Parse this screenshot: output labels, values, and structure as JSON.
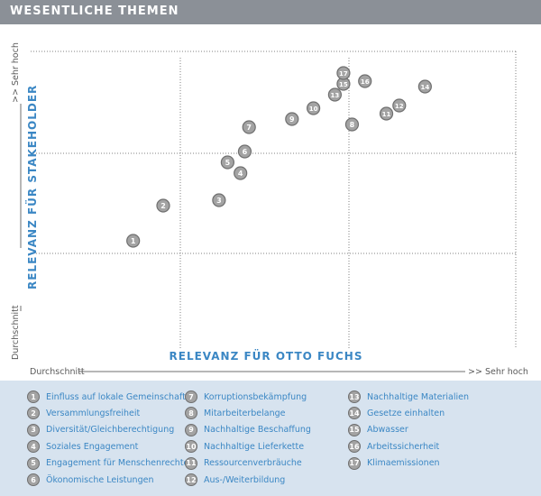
{
  "header": {
    "title": "WESENTLICHE THEMEN"
  },
  "axes": {
    "x_title": "RELEVANZ FÜR OTTO FUCHS",
    "y_title": "RELEVANZ FÜR STAKEHOLDER",
    "x_low": "Durchschnitt",
    "x_high": ">> Sehr hoch",
    "y_low": "Durchschnitt",
    "y_high": ">> Sehr hoch"
  },
  "chart_data": {
    "type": "scatter",
    "xlabel": "RELEVANZ FÜR OTTO FUCHS",
    "ylabel": "RELEVANZ FÜR STAKEHOLDER",
    "xlim": [
      0,
      100
    ],
    "ylim": [
      0,
      100
    ],
    "points": [
      {
        "id": "1",
        "x": 18,
        "y": 30
      },
      {
        "id": "2",
        "x": 25,
        "y": 43
      },
      {
        "id": "3",
        "x": 38,
        "y": 45
      },
      {
        "id": "4",
        "x": 43,
        "y": 55
      },
      {
        "id": "5",
        "x": 40,
        "y": 59
      },
      {
        "id": "6",
        "x": 44,
        "y": 63
      },
      {
        "id": "7",
        "x": 45,
        "y": 72
      },
      {
        "id": "8",
        "x": 69,
        "y": 73
      },
      {
        "id": "9",
        "x": 55,
        "y": 75
      },
      {
        "id": "10",
        "x": 60,
        "y": 79
      },
      {
        "id": "11",
        "x": 77,
        "y": 77
      },
      {
        "id": "12",
        "x": 80,
        "y": 80
      },
      {
        "id": "13",
        "x": 65,
        "y": 84
      },
      {
        "id": "14",
        "x": 86,
        "y": 87
      },
      {
        "id": "15",
        "x": 67,
        "y": 88
      },
      {
        "id": "16",
        "x": 72,
        "y": 89
      },
      {
        "id": "17",
        "x": 67,
        "y": 92
      }
    ]
  },
  "legend": [
    {
      "num": "1",
      "label": "Einfluss auf lokale Gemeinschaften"
    },
    {
      "num": "2",
      "label": "Versammlungsfreiheit"
    },
    {
      "num": "3",
      "label": "Diversität/Gleichberechtigung"
    },
    {
      "num": "4",
      "label": "Soziales Engagement"
    },
    {
      "num": "5",
      "label": "Engagement für Menschenrechte"
    },
    {
      "num": "6",
      "label": "Ökonomische Leistungen"
    },
    {
      "num": "7",
      "label": "Korruptionsbekämpfung"
    },
    {
      "num": "8",
      "label": "Mitarbeiterbelange"
    },
    {
      "num": "9",
      "label": "Nachhaltige Beschaffung"
    },
    {
      "num": "10",
      "label": "Nachhaltige Lieferkette"
    },
    {
      "num": "11",
      "label": "Ressourcenverbräuche"
    },
    {
      "num": "12",
      "label": "Aus-/Weiterbildung"
    },
    {
      "num": "13",
      "label": "Nachhaltige Materialien"
    },
    {
      "num": "14",
      "label": "Gesetze einhalten"
    },
    {
      "num": "15",
      "label": "Abwasser"
    },
    {
      "num": "16",
      "label": "Arbeitssicherheit"
    },
    {
      "num": "17",
      "label": "Klimaemissionen"
    }
  ],
  "colors": {
    "accent": "#3b87c4",
    "header_bg": "#8b9097",
    "legend_bg": "#d7e3ef",
    "marker_fill": "#a3a3a3",
    "marker_stroke": "#6f6f6f"
  }
}
